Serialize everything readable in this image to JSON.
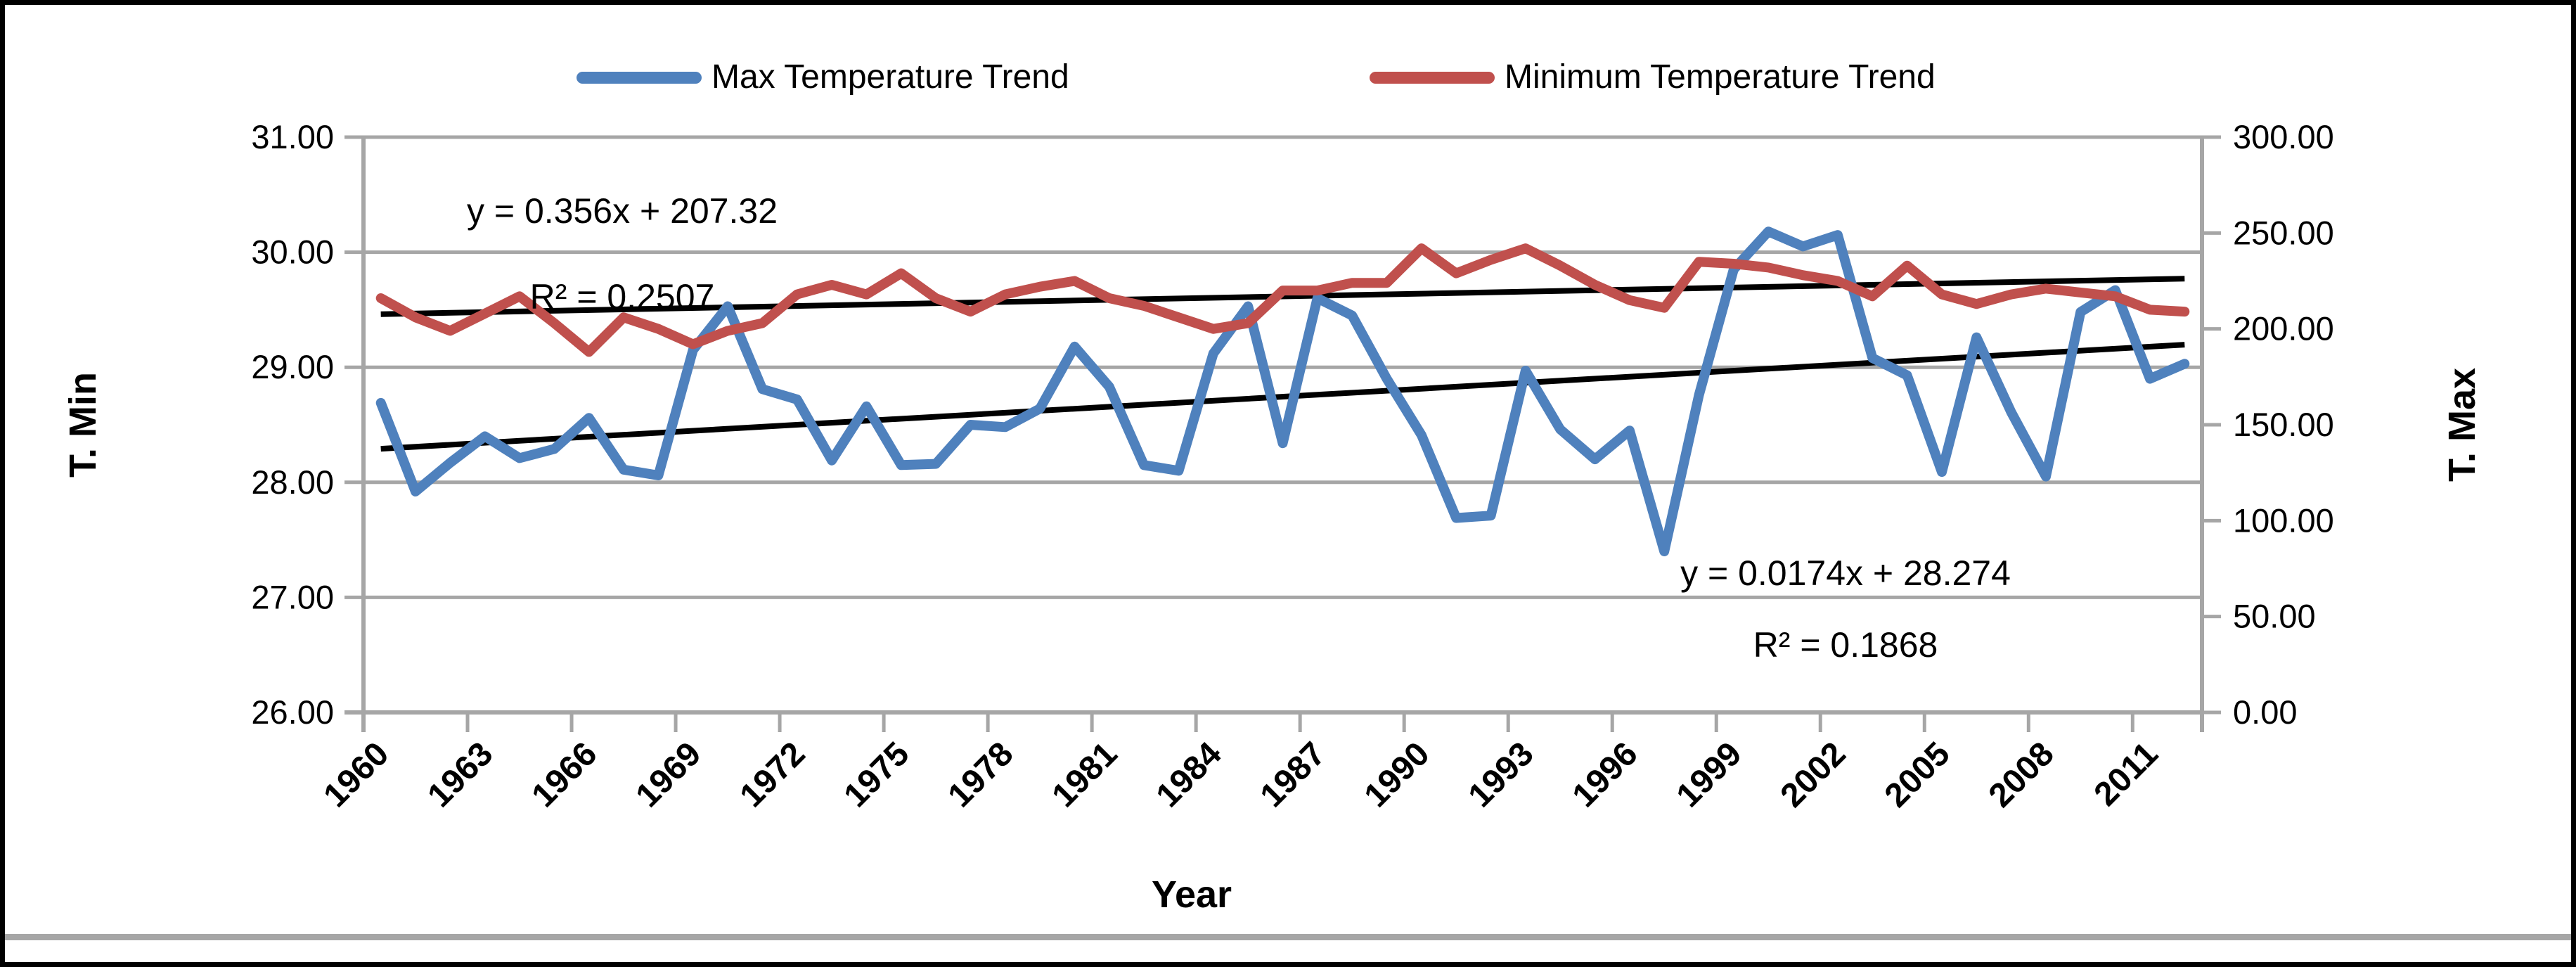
{
  "chart_data": {
    "type": "line",
    "title": "",
    "xlabel": "Year",
    "x_tick_interval": 3,
    "x": [
      1960,
      1961,
      1962,
      1963,
      1964,
      1965,
      1966,
      1967,
      1968,
      1969,
      1970,
      1971,
      1972,
      1973,
      1974,
      1975,
      1976,
      1977,
      1978,
      1979,
      1980,
      1981,
      1982,
      1983,
      1984,
      1985,
      1986,
      1987,
      1988,
      1989,
      1990,
      1991,
      1992,
      1993,
      1994,
      1995,
      1996,
      1997,
      1998,
      1999,
      2000,
      2001,
      2002,
      2003,
      2004,
      2005,
      2006,
      2007,
      2008,
      2009,
      2010,
      2011,
      2012
    ],
    "series": [
      {
        "name": "Max Temperature Trend",
        "color": "#4F81BD",
        "axis": "left",
        "values": [
          28.69,
          27.92,
          28.17,
          28.4,
          28.21,
          28.29,
          28.56,
          28.11,
          28.06,
          29.15,
          29.53,
          28.81,
          28.72,
          28.19,
          28.66,
          28.15,
          28.16,
          28.5,
          28.48,
          28.64,
          29.18,
          28.83,
          28.15,
          28.1,
          29.12,
          29.53,
          28.34,
          29.6,
          29.45,
          28.9,
          28.41,
          27.69,
          27.71,
          28.97,
          28.46,
          28.2,
          28.45,
          27.4,
          28.76,
          29.85,
          30.18,
          30.05,
          30.15,
          29.08,
          28.93,
          28.09,
          29.26,
          28.61,
          28.05,
          29.48,
          29.67,
          28.9,
          29.03
        ]
      },
      {
        "name": "Minimum Temperature Trend",
        "color": "#C0504D",
        "axis": "right",
        "values": [
          216,
          206,
          199,
          208,
          217,
          203,
          188,
          206,
          200,
          192,
          199,
          203,
          218,
          223,
          218,
          229,
          216,
          209,
          218,
          222,
          225,
          216,
          212,
          206,
          200,
          203,
          220,
          220,
          224,
          224,
          242,
          229,
          236,
          242,
          233,
          223,
          215,
          211,
          235,
          234,
          232,
          228,
          225,
          217,
          233,
          218,
          213,
          218,
          221,
          219,
          217,
          210,
          209
        ]
      }
    ],
    "left_axis": {
      "title": "T. Min",
      "min": 26,
      "max": 31,
      "step": 1,
      "decimals": 2
    },
    "right_axis": {
      "title": "T. Max",
      "min": 0,
      "max": 300,
      "step": 50,
      "decimals": 2
    },
    "trendlines": [
      {
        "series": "Max Temperature Trend",
        "axis": "left",
        "slope": 0.0174,
        "intercept": 28.274,
        "equation": "y = 0.0174x + 28.274",
        "r2": "R² = 0.1868",
        "color": "#000000"
      },
      {
        "series": "Minimum Temperature Trend",
        "axis": "right",
        "slope": 0.356,
        "intercept": 207.32,
        "equation": "y = 0.356x + 207.32",
        "r2": "R² = 0.2507",
        "color": "#000000"
      }
    ],
    "grid": "horizontal",
    "legend_position": "top",
    "axis_color": "#A6A6A6"
  }
}
